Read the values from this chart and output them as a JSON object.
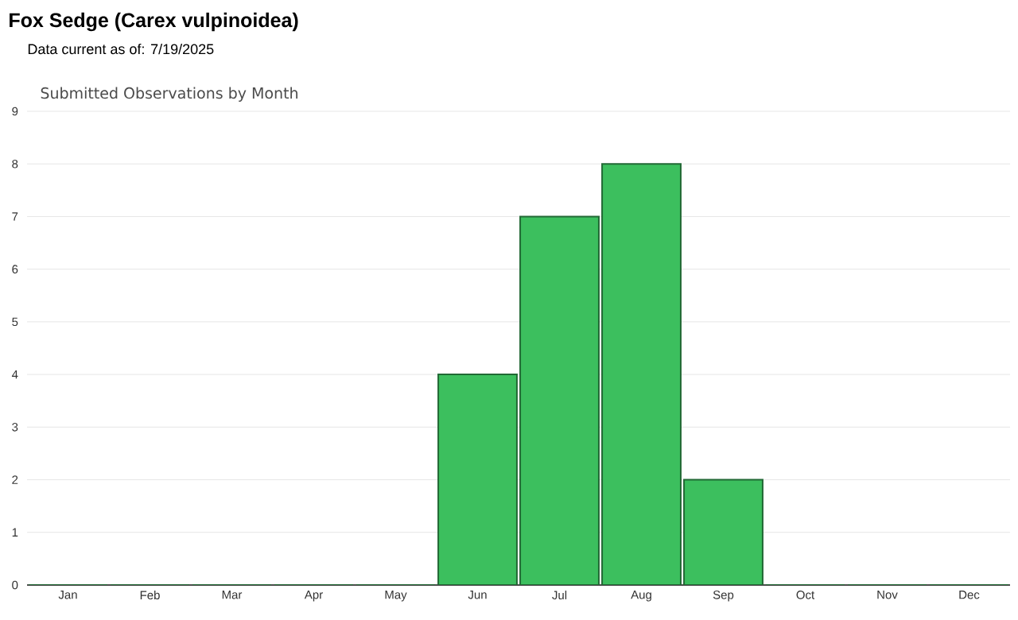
{
  "chart_data": {
    "type": "bar",
    "title": "Fox Sedge   (Carex vulpinoidea)",
    "subtitle": "Data current as of: 7/19/2025",
    "annotations": [
      "Submitted Observations by Month"
    ],
    "categories": [
      "Jan",
      "Feb",
      "Mar",
      "Apr",
      "May",
      "Jun",
      "Jul",
      "Aug",
      "Sep",
      "Oct",
      "Nov",
      "Dec"
    ],
    "values": [
      0,
      0,
      0,
      0,
      0,
      4,
      7,
      8,
      2,
      0,
      0,
      0
    ],
    "color": "#3cbf5e",
    "ylim": [
      0,
      9
    ],
    "yticks": [
      0,
      1,
      2,
      3,
      4,
      5,
      6,
      7,
      8,
      9
    ],
    "grid": "y"
  }
}
